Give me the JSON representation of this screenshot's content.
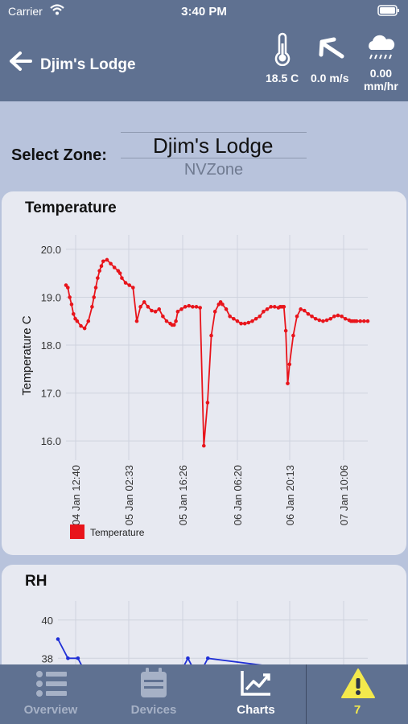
{
  "status": {
    "carrier": "Carrier",
    "time": "3:40 PM"
  },
  "header": {
    "title": "Djim's Lodge",
    "temperature": "18.5 C",
    "wind": "0.0 m/s",
    "rain_value": "0.00",
    "rain_unit": "mm/hr"
  },
  "zone": {
    "label": "Select Zone:",
    "selected": "Djim's Lodge",
    "next": "NVZone"
  },
  "temperature_card": {
    "title": "Temperature"
  },
  "rh_card": {
    "title": "RH"
  },
  "tabs": [
    {
      "label": "Overview",
      "icon": "list-icon"
    },
    {
      "label": "Devices",
      "icon": "calendar-icon"
    },
    {
      "label": "Charts",
      "icon": "chart-icon"
    },
    {
      "label": "7",
      "icon": "warning-icon"
    }
  ],
  "colors": {
    "header": "#5f7191",
    "temperature_line": "#e8141b",
    "rh_line": "#1f2fd6"
  },
  "chart_data": [
    {
      "type": "line",
      "ylabel": "Temperature C",
      "ylim": [
        15.6,
        20.3
      ],
      "yticks": [
        "16.0",
        "17.0",
        "18.0",
        "19.0",
        "20.0"
      ],
      "x_tick_labels": [
        "04 Jan 12:40",
        "05 Jan 02:33",
        "05 Jan 16:26",
        "06 Jan 06:20",
        "06 Jan 20:13",
        "07 Jan 10:06"
      ],
      "grid": true,
      "legend": "bottom-left",
      "series": [
        {
          "name": "Temperature",
          "x": [
            0,
            0.5,
            1,
            1.5,
            2,
            2.5,
            3,
            4,
            5,
            6,
            7,
            7.5,
            8,
            8.5,
            9,
            9.5,
            10,
            11,
            12,
            13,
            14,
            14.5,
            15,
            16,
            17,
            18,
            19,
            20,
            21,
            22,
            23,
            24,
            25,
            26,
            27,
            28,
            28.5,
            29,
            29.5,
            30,
            31,
            32,
            33,
            34,
            35,
            36,
            37,
            38,
            39,
            40,
            41,
            41.5,
            42,
            43,
            44,
            45,
            46,
            47,
            48,
            49,
            50,
            51,
            52,
            53,
            54,
            55,
            56,
            57,
            57.5,
            58,
            58.5,
            59,
            59.5,
            60,
            61,
            62,
            63,
            64,
            65,
            66,
            67,
            68,
            69,
            70,
            71,
            72,
            73,
            74,
            75,
            76,
            76.5,
            77,
            77.5,
            78,
            79,
            80,
            81
          ],
          "values": [
            19.25,
            19.2,
            19.0,
            18.85,
            18.65,
            18.55,
            18.5,
            18.4,
            18.35,
            18.5,
            18.8,
            19.0,
            19.2,
            19.4,
            19.55,
            19.65,
            19.75,
            19.78,
            19.7,
            19.62,
            19.55,
            19.5,
            19.4,
            19.3,
            19.25,
            19.2,
            18.5,
            18.8,
            18.9,
            18.8,
            18.72,
            18.7,
            18.75,
            18.6,
            18.5,
            18.45,
            18.42,
            18.42,
            18.5,
            18.7,
            18.75,
            18.8,
            18.82,
            18.8,
            18.8,
            18.78,
            15.9,
            16.8,
            18.2,
            18.7,
            18.85,
            18.9,
            18.85,
            18.75,
            18.6,
            18.55,
            18.5,
            18.45,
            18.45,
            18.47,
            18.5,
            18.55,
            18.6,
            18.7,
            18.75,
            18.8,
            18.8,
            18.78,
            18.8,
            18.8,
            18.8,
            18.3,
            17.2,
            17.6,
            18.2,
            18.6,
            18.75,
            18.72,
            18.65,
            18.6,
            18.55,
            18.52,
            18.5,
            18.52,
            18.55,
            18.6,
            18.62,
            18.6,
            18.55,
            18.52,
            18.5,
            18.5,
            18.5,
            18.5,
            18.5,
            18.5,
            18.5
          ]
        }
      ]
    },
    {
      "type": "line",
      "ylim": [
        37,
        41
      ],
      "yticks": [
        "38",
        "40"
      ],
      "grid": true,
      "series": [
        {
          "name": "RH",
          "x": [
            0,
            1,
            2,
            3,
            12,
            13,
            14,
            15,
            30,
            31
          ],
          "values": [
            39.0,
            38.0,
            38.0,
            37.0,
            37.0,
            38.0,
            37.0,
            38.0,
            37.0,
            37.0
          ]
        }
      ]
    }
  ]
}
